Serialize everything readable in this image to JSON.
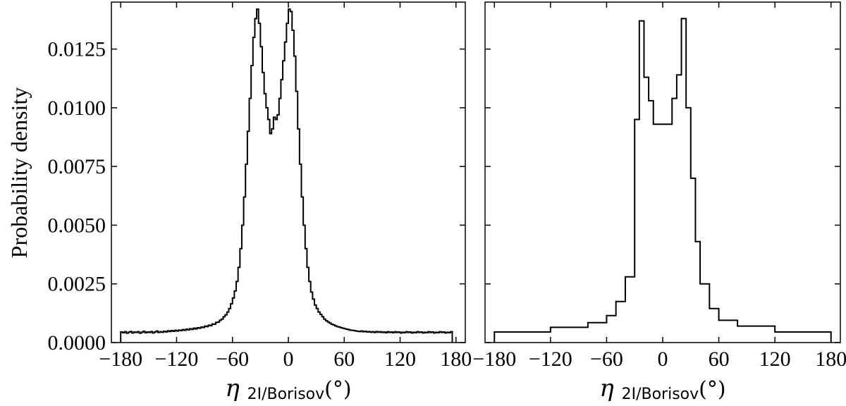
{
  "chart_data": [
    {
      "type": "histogram",
      "panel": "left",
      "ylabel": "Probability density",
      "xlabel": {
        "symbol": "η",
        "subscript": "2I/Borisov",
        "unit": "(°)"
      },
      "xlim": [
        -180,
        180
      ],
      "ylim": [
        0,
        0.0145
      ],
      "xticks": [
        -180,
        -120,
        -60,
        0,
        60,
        120,
        180
      ],
      "xtick_labels": [
        "−180",
        "−120",
        "−60",
        "0",
        "60",
        "120",
        "180"
      ],
      "yticks": [
        0,
        0.0025,
        0.005,
        0.0075,
        0.01,
        0.0125
      ],
      "ytick_labels": [
        "0.0000",
        "0.0025",
        "0.0050",
        "0.0075",
        "0.0100",
        "0.0125"
      ],
      "series": [
        {
          "values_note": "equal-width bins of 2 deg from -180 to 180",
          "bin_edges": [
            -180,
            180
          ],
          "bin_width": 2,
          "values": [
            0.00045,
            0.00042,
            0.00046,
            0.0004,
            0.00044,
            0.00047,
            0.00041,
            0.00045,
            0.00043,
            0.00046,
            0.0004,
            0.00044,
            0.00048,
            0.00042,
            0.00045,
            0.00043,
            0.00047,
            0.00041,
            0.00045,
            0.00049,
            0.00043,
            0.00046,
            0.00044,
            0.00048,
            0.00045,
            0.0005,
            0.00047,
            0.00051,
            0.00048,
            0.00052,
            0.00049,
            0.00053,
            0.00051,
            0.00055,
            0.00052,
            0.00057,
            0.00054,
            0.00059,
            0.00056,
            0.00061,
            0.00058,
            0.00063,
            0.00061,
            0.00066,
            0.00064,
            0.0007,
            0.00068,
            0.00074,
            0.00072,
            0.00079,
            0.00078,
            0.00086,
            0.00087,
            0.00095,
            0.001,
            0.0011,
            0.00118,
            0.0013,
            0.00145,
            0.00165,
            0.0019,
            0.0022,
            0.0026,
            0.0032,
            0.004,
            0.005,
            0.0062,
            0.0076,
            0.009,
            0.0104,
            0.0118,
            0.013,
            0.0138,
            0.0142,
            0.0136,
            0.0126,
            0.0115,
            0.0106,
            0.01,
            0.0095,
            0.0089,
            0.0091,
            0.0096,
            0.0095,
            0.0097,
            0.0104,
            0.0112,
            0.012,
            0.0128,
            0.0136,
            0.0142,
            0.0141,
            0.0133,
            0.0122,
            0.0107,
            0.0091,
            0.0076,
            0.0062,
            0.005,
            0.004,
            0.0032,
            0.0026,
            0.00215,
            0.00185,
            0.0016,
            0.00145,
            0.0013,
            0.0012,
            0.0011,
            0.001,
            0.00093,
            0.00088,
            0.00083,
            0.00078,
            0.00075,
            0.00071,
            0.00068,
            0.00066,
            0.00063,
            0.00061,
            0.00059,
            0.00057,
            0.00055,
            0.00053,
            0.00052,
            0.00051,
            0.00049,
            0.00048,
            0.00047,
            0.00049,
            0.00046,
            0.00048,
            0.00045,
            0.00047,
            0.00044,
            0.00046,
            0.00043,
            0.00047,
            0.00044,
            0.00046,
            0.00043,
            0.00045,
            0.00042,
            0.00046,
            0.00043,
            0.00045,
            0.00042,
            0.00046,
            0.00043,
            0.00045,
            0.00041,
            0.00044,
            0.00042,
            0.00046,
            0.00043,
            0.00045,
            0.00041,
            0.00044,
            0.00042,
            0.00046,
            0.00043,
            0.00045,
            0.00041,
            0.00044,
            0.00042,
            0.00046,
            0.00043,
            0.00045,
            0.00041,
            0.00044,
            0.00042,
            0.00046,
            0.00043,
            0.00045,
            0.00041,
            0.00044,
            0.00042,
            0.00046
          ]
        }
      ]
    },
    {
      "type": "histogram",
      "panel": "right",
      "xlabel": {
        "symbol": "η",
        "subscript": "2I/Borisov",
        "unit": "(°)"
      },
      "xlim": [
        -180,
        180
      ],
      "ylim": [
        0,
        0.0145
      ],
      "xticks": [
        -180,
        -120,
        -60,
        0,
        60,
        120,
        180
      ],
      "xtick_labels": [
        "−180",
        "−120",
        "−60",
        "0",
        "60",
        "120",
        "180"
      ],
      "series": [
        {
          "bin_edges": [
            -180,
            -120,
            -80,
            -60,
            -50,
            -40,
            -30,
            -25,
            -20,
            -15,
            -10,
            0,
            10,
            15,
            20,
            25,
            30,
            35,
            40,
            50,
            60,
            80,
            120,
            180
          ],
          "values": [
            0.00045,
            0.00065,
            0.00085,
            0.00115,
            0.00175,
            0.0028,
            0.0095,
            0.0137,
            0.0113,
            0.0103,
            0.0093,
            0.0093,
            0.0104,
            0.0114,
            0.0138,
            0.01,
            0.007,
            0.0043,
            0.0025,
            0.00145,
            0.00095,
            0.0007,
            0.00045
          ]
        }
      ]
    }
  ]
}
